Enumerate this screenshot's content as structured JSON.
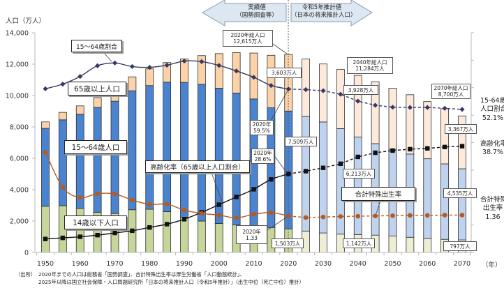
{
  "chart_data": {
    "type": "bar",
    "subtype": "stacked bar with line overlays (combo)",
    "title": "",
    "ylabel": "人口（万人）",
    "xlabel": "（年）",
    "ylim": [
      0,
      14000
    ],
    "yticks": [
      0,
      2000,
      4000,
      6000,
      8000,
      10000,
      12000,
      14000
    ],
    "ytick_labels": [
      "0",
      "2,000",
      "4,000",
      "6,000",
      "8,000",
      "10,000",
      "12,000",
      "14,000"
    ],
    "y2lim": [
      0,
      80
    ],
    "y2_unit": "%",
    "y2_ticks": [
      0,
      10,
      20,
      30,
      40,
      50,
      60,
      70,
      80
    ],
    "tfr_right_axis_multiplier": 10,
    "categories": [
      1950,
      1955,
      1960,
      1965,
      1970,
      1975,
      1980,
      1985,
      1990,
      1995,
      2000,
      2005,
      2010,
      2015,
      2020,
      2025,
      2030,
      2035,
      2040,
      2045,
      2050,
      2055,
      2060,
      2065,
      2070
    ],
    "xtick_labels": [
      "1950",
      "1960",
      "1970",
      "1980",
      "1990",
      "2000",
      "2010",
      "2020",
      "2030",
      "2040",
      "2050",
      "2060",
      "2070"
    ],
    "xtick_years": [
      1950,
      1960,
      1970,
      1980,
      1990,
      2000,
      2010,
      2020,
      2030,
      2040,
      2050,
      2060,
      2070
    ],
    "projection_start": 2020,
    "grid": false,
    "series": [
      {
        "key": "child",
        "name": "14歳以下人口",
        "type": "bar",
        "axis": "left",
        "unit": "万人",
        "values": [
          2943,
          2980,
          2807,
          2553,
          2482,
          2723,
          2751,
          2603,
          2249,
          2001,
          1847,
          1752,
          1680,
          1589,
          1503,
          1363,
          1240,
          1169,
          1142,
          1103,
          1041,
          966,
          893,
          836,
          797
        ]
      },
      {
        "key": "working",
        "name": "15～64歳人口",
        "type": "bar",
        "axis": "left",
        "unit": "万人",
        "values": [
          4966,
          5473,
          6000,
          6693,
          7157,
          7581,
          7883,
          8251,
          8590,
          8716,
          8622,
          8409,
          8103,
          7629,
          7509,
          7310,
          7076,
          6722,
          6213,
          5832,
          5540,
          5307,
          5078,
          4809,
          4535
        ]
      },
      {
        "key": "elderly",
        "name": "65歳以上人口",
        "type": "bar",
        "axis": "left",
        "unit": "万人",
        "values": [
          411,
          475,
          535,
          624,
          733,
          887,
          1065,
          1247,
          1493,
          1828,
          2204,
          2576,
          2925,
          3347,
          3603,
          3653,
          3696,
          3773,
          3928,
          3945,
          3888,
          3778,
          3644,
          3513,
          3367
        ]
      },
      {
        "key": "ratio",
        "name": "15～64歳割合",
        "type": "line",
        "axis": "right",
        "unit": "%",
        "marker": "diamond",
        "values": [
          59.6,
          61.3,
          64.1,
          68.0,
          69.0,
          67.7,
          67.4,
          68.2,
          69.7,
          69.5,
          68.1,
          66.1,
          63.8,
          60.8,
          59.5,
          59.3,
          58.9,
          57.6,
          55.1,
          53.6,
          52.9,
          52.8,
          52.8,
          52.5,
          52.1
        ]
      },
      {
        "key": "aging",
        "name": "高齢化率（65歳以上人口割合）",
        "type": "line",
        "axis": "right",
        "unit": "%",
        "marker": "square",
        "values": [
          4.9,
          5.3,
          5.7,
          6.3,
          7.1,
          7.9,
          9.1,
          10.3,
          12.1,
          14.6,
          17.4,
          20.2,
          23.0,
          26.6,
          28.6,
          29.6,
          30.8,
          32.3,
          34.8,
          36.3,
          37.1,
          37.6,
          37.9,
          38.4,
          38.7
        ]
      },
      {
        "key": "tfr",
        "name": "合計特殊出生率",
        "type": "line",
        "axis": "right",
        "unit": "",
        "marker": "circle",
        "values": [
          3.65,
          2.37,
          2.0,
          2.14,
          2.13,
          1.91,
          1.75,
          1.76,
          1.54,
          1.42,
          1.36,
          1.26,
          1.39,
          1.45,
          1.33,
          1.27,
          1.29,
          1.31,
          1.32,
          1.33,
          1.34,
          1.35,
          1.35,
          1.36,
          1.36
        ]
      }
    ],
    "colors": {
      "child_actual": "#c6d69a",
      "working_actual": "#4a84d0",
      "elderly_actual": "#fcd3a8",
      "child_projection": "#eeedd6",
      "working_projection": "#bfd2ee",
      "elderly_projection": "#fdeadb",
      "bar_outline": "#2e2e2e",
      "ratio_line": "#353a64",
      "aging_line": "#111111",
      "tfr_line": "#b65a1e",
      "period_divider": "#555555",
      "period_arrow_fill": "#dde7f1",
      "period_arrow_stroke": "#8a9bb3"
    },
    "annotations": {
      "total_2020": [
        "2020年総人口",
        "12,615万人"
      ],
      "elderly_2020": "3,603万人",
      "ratio_2020": [
        "2020年",
        "59.5%"
      ],
      "working_2020": "7,509万人",
      "aging_2020": [
        "2020年",
        "28.6%"
      ],
      "tfr_2020": [
        "2020年",
        "1.33"
      ],
      "child_2020": "1,503万人",
      "total_2040": [
        "2040年総人口",
        "11,284万人"
      ],
      "elderly_2040": "3,928万人",
      "working_2040": "6,213万人",
      "child_2040": "1,142万人",
      "total_2070": [
        "2070年総人口",
        "8,700万人"
      ],
      "elderly_2070": "3,367万人",
      "working_2070": "4,535万人",
      "child_2070": "797万人"
    },
    "end_labels": {
      "ratio": [
        "15-64歳",
        "人口割合",
        "52.1%"
      ],
      "aging": [
        "高齢化率",
        "38.7%"
      ],
      "tfr": [
        "合計特殊",
        "出生率",
        "1.36"
      ]
    }
  },
  "period_arrows": {
    "actual": [
      "実績値",
      "（国勢調査等）"
    ],
    "projection": [
      "令和5年推計値",
      "（日本の将来推計人口）"
    ]
  },
  "footnote": {
    "source_label": "（出所）",
    "lines": [
      "2020年までの人口は総務省「国勢調査」、合計特殊出生率は厚生労働省「人口動態統計」、",
      "2025年以降は国立社会保障・人口問題研究所「日本の将来推計人口（令和5年推計）」（出生中位（死亡中位）推計）"
    ]
  }
}
